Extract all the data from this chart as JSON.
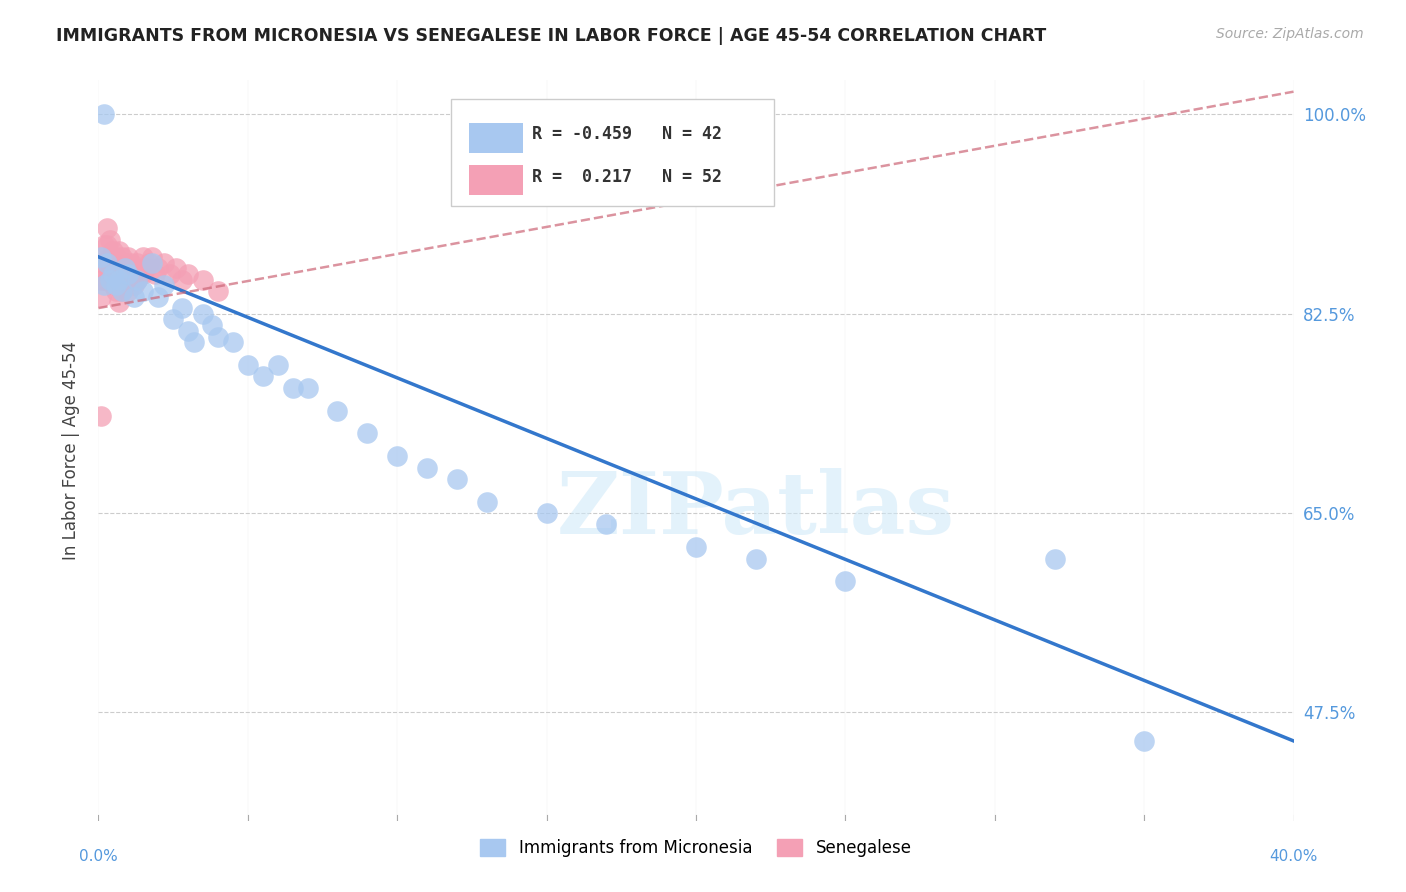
{
  "title": "IMMIGRANTS FROM MICRONESIA VS SENEGALESE IN LABOR FORCE | AGE 45-54 CORRELATION CHART",
  "source": "Source: ZipAtlas.com",
  "ylabel": "In Labor Force | Age 45-54",
  "xlim": [
    0.0,
    0.4
  ],
  "ylim": [
    0.38,
    1.03
  ],
  "xticks": [
    0.0,
    0.05,
    0.1,
    0.15,
    0.2,
    0.25,
    0.3,
    0.35,
    0.4
  ],
  "yticks_right": [
    1.0,
    0.825,
    0.65,
    0.475
  ],
  "ytick_right_labels": [
    "100.0%",
    "82.5%",
    "65.0%",
    "47.5%"
  ],
  "grid_color": "#cccccc",
  "background_color": "#ffffff",
  "micronesia_color": "#a8c8f0",
  "senegalese_color": "#f4a0b5",
  "micronesia_R": -0.459,
  "micronesia_N": 42,
  "senegalese_R": 0.217,
  "senegalese_N": 52,
  "title_color": "#222222",
  "axis_color": "#5599dd",
  "watermark": "ZIPatlas",
  "reg_blue": "#3377cc",
  "reg_pink": "#cc6677",
  "micronesia_x": [
    0.001,
    0.002,
    0.003,
    0.004,
    0.005,
    0.006,
    0.007,
    0.008,
    0.009,
    0.01,
    0.012,
    0.013,
    0.015,
    0.018,
    0.02,
    0.022,
    0.025,
    0.028,
    0.03,
    0.032,
    0.035,
    0.038,
    0.04,
    0.045,
    0.05,
    0.055,
    0.06,
    0.065,
    0.07,
    0.08,
    0.09,
    0.1,
    0.11,
    0.12,
    0.13,
    0.15,
    0.17,
    0.2,
    0.22,
    0.25,
    0.32,
    0.35
  ],
  "micronesia_y": [
    0.875,
    0.85,
    0.87,
    0.855,
    0.86,
    0.85,
    0.855,
    0.845,
    0.865,
    0.86,
    0.84,
    0.855,
    0.845,
    0.87,
    0.84,
    0.85,
    0.82,
    0.83,
    0.81,
    0.8,
    0.825,
    0.815,
    0.805,
    0.8,
    0.78,
    0.77,
    0.78,
    0.76,
    0.76,
    0.74,
    0.72,
    0.7,
    0.69,
    0.68,
    0.66,
    0.65,
    0.64,
    0.62,
    0.61,
    0.59,
    0.61,
    0.45
  ],
  "micronesia_outlier_x": [
    0.002
  ],
  "micronesia_outlier_y": [
    1.0
  ],
  "senegalese_x": [
    0.001,
    0.001,
    0.001,
    0.002,
    0.002,
    0.002,
    0.003,
    0.003,
    0.003,
    0.003,
    0.004,
    0.004,
    0.004,
    0.005,
    0.005,
    0.005,
    0.006,
    0.006,
    0.006,
    0.007,
    0.007,
    0.007,
    0.007,
    0.008,
    0.008,
    0.008,
    0.009,
    0.009,
    0.01,
    0.01,
    0.01,
    0.011,
    0.011,
    0.012,
    0.012,
    0.013,
    0.013,
    0.014,
    0.015,
    0.015,
    0.016,
    0.017,
    0.018,
    0.019,
    0.02,
    0.022,
    0.024,
    0.026,
    0.028,
    0.03,
    0.035,
    0.04
  ],
  "senegalese_y": [
    0.87,
    0.855,
    0.84,
    0.885,
    0.87,
    0.855,
    0.9,
    0.885,
    0.87,
    0.855,
    0.89,
    0.875,
    0.86,
    0.88,
    0.865,
    0.85,
    0.875,
    0.86,
    0.845,
    0.88,
    0.865,
    0.85,
    0.835,
    0.875,
    0.86,
    0.845,
    0.87,
    0.855,
    0.875,
    0.86,
    0.845,
    0.87,
    0.855,
    0.865,
    0.85,
    0.87,
    0.855,
    0.86,
    0.875,
    0.86,
    0.865,
    0.87,
    0.875,
    0.86,
    0.865,
    0.87,
    0.86,
    0.865,
    0.855,
    0.86,
    0.855,
    0.845
  ],
  "senegalese_extra_x": [
    0.0
  ],
  "senegalese_extra_y": [
    0.735
  ]
}
